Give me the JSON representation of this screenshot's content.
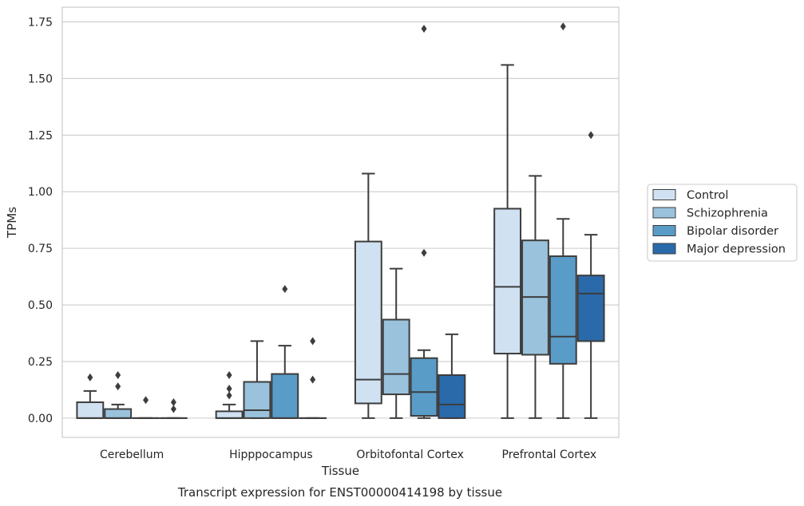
{
  "chart_data": {
    "type": "box",
    "caption": "Transcript expression for ENST00000414198 by tissue",
    "xlabel": "Tissue",
    "ylabel": "TPMs",
    "ylim": [
      -0.085,
      1.815
    ],
    "yticks": [
      0.0,
      0.25,
      0.5,
      0.75,
      1.0,
      1.25,
      1.5,
      1.75
    ],
    "ytick_labels": [
      "0.00",
      "0.25",
      "0.50",
      "0.75",
      "1.00",
      "1.25",
      "1.50",
      "1.75"
    ],
    "grid": "horizontal",
    "legend_position": "right",
    "categories": [
      "Cerebellum",
      "Hipppocampus",
      "Orbitofontal Cortex",
      "Prefrontal Cortex"
    ],
    "series": [
      {
        "name": "Control",
        "color": "#d0e1f2",
        "boxes": [
          {
            "whislo": 0.0,
            "q1": 0.0,
            "med": 0.0,
            "q3": 0.07,
            "whishi": 0.12,
            "fliers": [
              0.18
            ]
          },
          {
            "whislo": 0.0,
            "q1": 0.0,
            "med": 0.0,
            "q3": 0.03,
            "whishi": 0.06,
            "fliers": [
              0.1,
              0.13,
              0.19
            ]
          },
          {
            "whislo": 0.0,
            "q1": 0.065,
            "med": 0.17,
            "q3": 0.78,
            "whishi": 1.08,
            "fliers": []
          },
          {
            "whislo": 0.0,
            "q1": 0.285,
            "med": 0.58,
            "q3": 0.925,
            "whishi": 1.56,
            "fliers": []
          }
        ]
      },
      {
        "name": "Schizophrenia",
        "color": "#9ac2dc",
        "boxes": [
          {
            "whislo": 0.0,
            "q1": 0.0,
            "med": 0.0,
            "q3": 0.04,
            "whishi": 0.06,
            "fliers": [
              0.14,
              0.19
            ]
          },
          {
            "whislo": 0.0,
            "q1": 0.0,
            "med": 0.035,
            "q3": 0.16,
            "whishi": 0.34,
            "fliers": []
          },
          {
            "whislo": 0.0,
            "q1": 0.105,
            "med": 0.195,
            "q3": 0.435,
            "whishi": 0.66,
            "fliers": []
          },
          {
            "whislo": 0.0,
            "q1": 0.28,
            "med": 0.535,
            "q3": 0.785,
            "whishi": 1.07,
            "fliers": []
          }
        ]
      },
      {
        "name": "Bipolar disorder",
        "color": "#5a9cc8",
        "boxes": [
          {
            "whislo": 0.0,
            "q1": 0.0,
            "med": 0.0,
            "q3": 0.0,
            "whishi": 0.0,
            "fliers": [
              0.08
            ]
          },
          {
            "whislo": 0.0,
            "q1": 0.0,
            "med": 0.0,
            "q3": 0.195,
            "whishi": 0.32,
            "fliers": [
              0.57
            ]
          },
          {
            "whislo": 0.0,
            "q1": 0.01,
            "med": 0.115,
            "q3": 0.265,
            "whishi": 0.3,
            "fliers": [
              0.73,
              1.72
            ]
          },
          {
            "whislo": 0.0,
            "q1": 0.24,
            "med": 0.36,
            "q3": 0.715,
            "whishi": 0.88,
            "fliers": [
              1.73
            ]
          }
        ]
      },
      {
        "name": "Major depression",
        "color": "#2a6aab",
        "boxes": [
          {
            "whislo": 0.0,
            "q1": 0.0,
            "med": 0.0,
            "q3": 0.0,
            "whishi": 0.0,
            "fliers": [
              0.04,
              0.07
            ]
          },
          {
            "whislo": 0.0,
            "q1": 0.0,
            "med": 0.0,
            "q3": 0.0,
            "whishi": 0.0,
            "fliers": [
              0.17,
              0.34
            ]
          },
          {
            "whislo": 0.0,
            "q1": 0.0,
            "med": 0.06,
            "q3": 0.19,
            "whishi": 0.37,
            "fliers": []
          },
          {
            "whislo": 0.0,
            "q1": 0.34,
            "med": 0.55,
            "q3": 0.63,
            "whishi": 0.81,
            "fliers": [
              1.25
            ]
          }
        ]
      }
    ]
  }
}
